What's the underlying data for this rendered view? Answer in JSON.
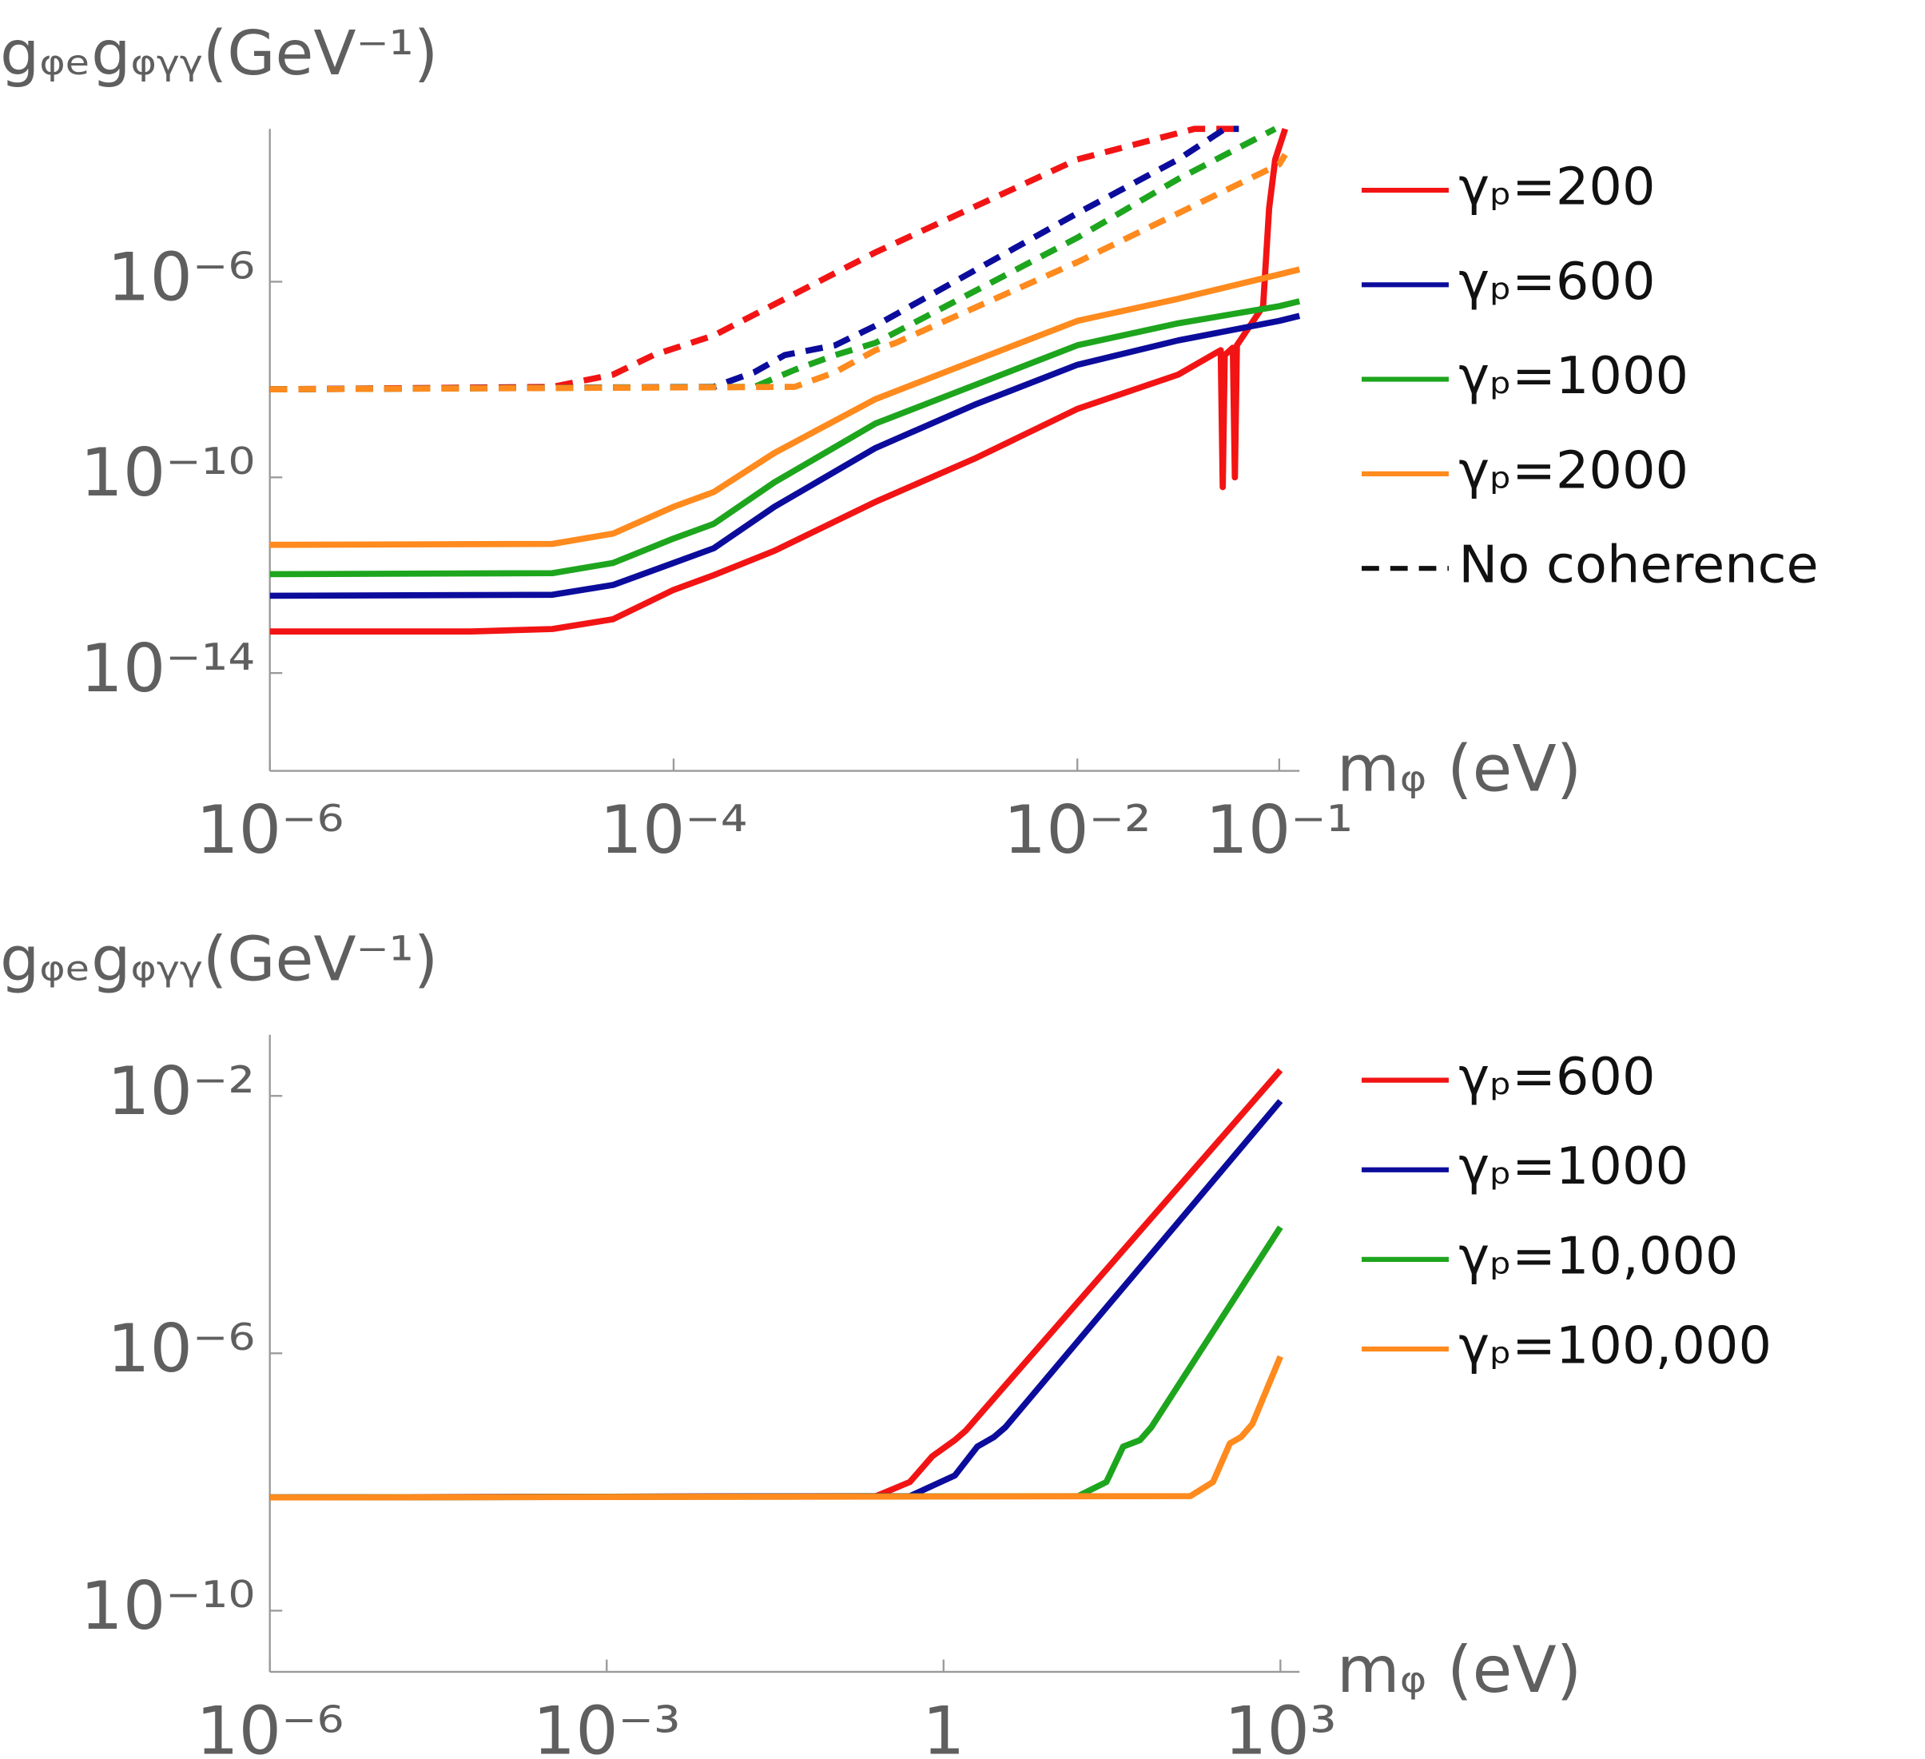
{
  "chart_data": [
    {
      "type": "line",
      "xscale": "log",
      "yscale": "log",
      "legend": "outside right",
      "y_label": "gᵩₑgᵩᵧᵧ(GeV⁻¹)",
      "x_label": "mᵩ (eV)",
      "xlim": [
        1e-06,
        0.126
      ],
      "ylim": [
        1e-16,
        0.00133
      ],
      "xticks": [
        {
          "value": 1e-06,
          "label": "10⁻⁶"
        },
        {
          "value": 0.0001,
          "label": "10⁻⁴"
        },
        {
          "value": 0.01,
          "label": "10⁻²"
        },
        {
          "value": 0.1,
          "label": "10⁻¹"
        }
      ],
      "yticks": [
        {
          "value": 1e-06,
          "label": "10⁻⁶"
        },
        {
          "value": 1e-10,
          "label": "10⁻¹⁰"
        },
        {
          "value": 1e-14,
          "label": "10⁻¹⁴"
        }
      ],
      "dashed_label": "No coherence",
      "series": [
        {
          "name": "γₚ=200",
          "color": "#f21414",
          "x": [
            1e-06,
            1e-05,
            2.51e-05,
            5.01e-05,
            7.94e-05,
            0.0001,
            0.000158,
            0.000316,
            0.001,
            0.00316,
            0.01,
            0.0316,
            0.0513,
            0.0525,
            0.0537,
            0.0589,
            0.0603,
            0.0617,
            0.0832,
            0.0891,
            0.0955,
            0.107
          ],
          "values": [
            7.08e-14,
            7.08e-14,
            7.94e-14,
            1.26e-13,
            3.16e-13,
            5.01e-13,
            1e-12,
            3.16e-12,
            3.16e-11,
            2.51e-10,
            2.51e-09,
            1.26e-08,
            3.98e-08,
            6.31e-11,
            3.16e-08,
            4.47e-08,
            1e-10,
            5.01e-08,
            3.16e-07,
            3.16e-05,
            0.000316,
            0.00133
          ]
        },
        {
          "name": "γₚ=600",
          "color": "#0c0c9c",
          "x": [
            1e-06,
            2.51e-05,
            5.01e-05,
            0.0001,
            0.000158,
            0.000316,
            0.001,
            0.00316,
            0.01,
            0.0316,
            0.1,
            0.126
          ],
          "values": [
            3.8e-13,
            3.98e-13,
            6.31e-13,
            1.78e-12,
            3.55e-12,
            2.51e-11,
            3.98e-10,
            3.16e-09,
            2e-08,
            6.31e-08,
            1.58e-07,
            2e-07
          ]
        },
        {
          "name": "γₚ=1000",
          "color": "#1ea51e",
          "x": [
            1e-06,
            2.51e-05,
            5.01e-05,
            0.0001,
            0.000158,
            0.000316,
            0.001,
            0.00316,
            0.01,
            0.0316,
            0.1,
            0.126
          ],
          "values": [
            1.05e-12,
            1.1e-12,
            1.78e-12,
            5.62e-12,
            1.12e-11,
            7.94e-11,
            1.26e-09,
            7.94e-09,
            5.01e-08,
            1.41e-07,
            3.16e-07,
            3.98e-07
          ]
        },
        {
          "name": "γₚ=2000",
          "color": "#ff8a1e",
          "x": [
            1e-06,
            2.51e-05,
            5.01e-05,
            0.0001,
            0.000158,
            0.000316,
            0.001,
            0.00316,
            0.01,
            0.0316,
            0.1,
            0.126
          ],
          "values": [
            4.17e-12,
            4.37e-12,
            7.08e-12,
            2.51e-11,
            5.01e-11,
            3.16e-10,
            3.98e-09,
            2.51e-08,
            1.58e-07,
            4.47e-07,
            1.41e-06,
            1.78e-06
          ]
        },
        {
          "color": "#f21414",
          "dashed": true,
          "x": [
            1e-06,
            2.51e-05,
            5.01e-05,
            7.94e-05,
            0.000112,
            0.000158,
            0.001,
            0.01,
            0.038,
            0.0631
          ],
          "values": [
            6.31e-09,
            7.08e-09,
            1.26e-08,
            3.16e-08,
            5.01e-08,
            7.94e-08,
            3.98e-06,
            0.000316,
            0.00133,
            0.00133
          ]
        },
        {
          "color": "#0c0c9c",
          "dashed": true,
          "x": [
            1e-06,
            0.000158,
            0.000251,
            0.000355,
            0.000631,
            0.001,
            0.01,
            0.0316,
            0.0537,
            0.0631
          ],
          "values": [
            6.31e-09,
            7.08e-09,
            1.41e-08,
            3.16e-08,
            5.01e-08,
            1.26e-07,
            2.51e-05,
            0.000316,
            0.00133,
            0.00133
          ]
        },
        {
          "color": "#1ea51e",
          "dashed": true,
          "x": [
            1e-06,
            0.000251,
            0.000398,
            0.000631,
            0.001,
            0.01,
            0.0316,
            0.0955
          ],
          "values": [
            6.31e-09,
            7.08e-09,
            1.58e-08,
            3.16e-08,
            5.62e-08,
            7.94e-06,
            0.000126,
            0.00133
          ]
        },
        {
          "color": "#ff8a1e",
          "dashed": true,
          "x": [
            1e-06,
            0.000398,
            0.000631,
            0.001,
            0.00126,
            0.01,
            0.1,
            0.107
          ],
          "values": [
            6.31e-09,
            7.08e-09,
            1.41e-08,
            3.98e-08,
            5.62e-08,
            2.51e-06,
            0.000251,
            0.000398
          ]
        }
      ]
    },
    {
      "type": "line",
      "xscale": "log",
      "yscale": "log",
      "legend": "outside right",
      "y_label": "gᵩₑgᵩᵧᵧ(GeV⁻¹)",
      "x_label": "mᵩ (eV)",
      "xlim": [
        1e-06,
        1479
      ],
      "ylim": [
        1.12e-11,
        0.0891
      ],
      "xticks": [
        {
          "value": 1e-06,
          "label": "10⁻⁶"
        },
        {
          "value": 0.001,
          "label": "10⁻³"
        },
        1,
        {
          "value": 1000,
          "label": "10³"
        }
      ],
      "yticks": [
        {
          "value": 0.01,
          "label": "10⁻²"
        },
        {
          "value": 1e-06,
          "label": "10⁻⁶"
        },
        {
          "value": 1e-10,
          "label": "10⁻¹⁰"
        }
      ],
      "series": [
        {
          "name": "γₚ=600",
          "color": "#f21414",
          "x": [
            1e-06,
            0.251,
            0.501,
            0.794,
            1.26,
            1.58,
            1000
          ],
          "values": [
            5.75e-09,
            6.03e-09,
            1e-08,
            2.51e-08,
            4.47e-08,
            6.31e-08,
            0.0251
          ]
        },
        {
          "name": "γₚ=1000",
          "color": "#0c0c9c",
          "x": [
            1e-06,
            0.501,
            1.26,
            2,
            2.82,
            3.55,
            1000
          ],
          "values": [
            5.75e-09,
            6.03e-09,
            1.26e-08,
            3.55e-08,
            5.01e-08,
            7.08e-08,
            0.00832
          ]
        },
        {
          "name": "γₚ=10,000",
          "color": "#1ea51e",
          "x": [
            1e-06,
            15.8,
            28.2,
            39.8,
            56.2,
            70.8,
            1000
          ],
          "values": [
            5.75e-09,
            6.03e-09,
            1e-08,
            3.55e-08,
            4.47e-08,
            7.08e-08,
            9.12e-05
          ]
        },
        {
          "name": "γₚ=100,000",
          "color": "#ff8a1e",
          "x": [
            1e-06,
            158,
            251,
            355,
            447,
            562,
            1000
          ],
          "values": [
            5.75e-09,
            6.03e-09,
            1e-08,
            3.98e-08,
            5.01e-08,
            7.94e-08,
            8.91e-07
          ]
        }
      ]
    }
  ]
}
